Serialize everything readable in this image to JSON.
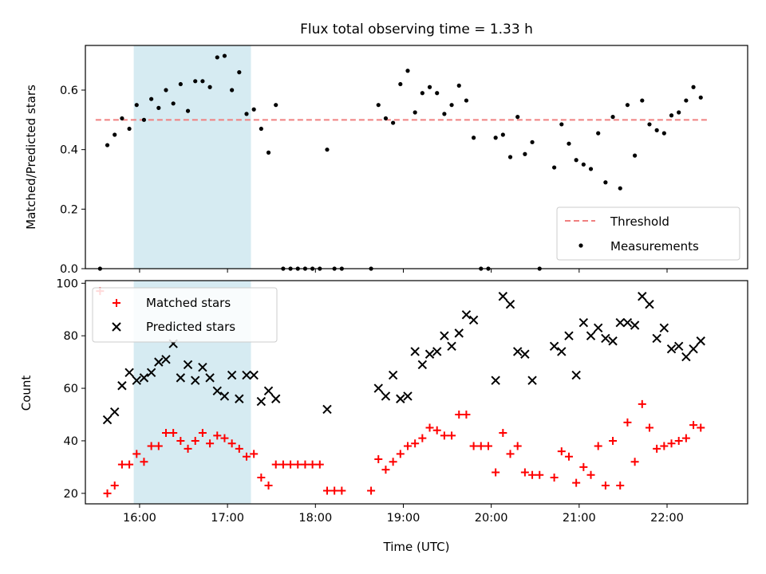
{
  "chart_data": [
    {
      "type": "scatter",
      "title": "Flux total observing time = 1.33 h",
      "xlabel": "",
      "ylabel": "Matched/Predicted stars",
      "xlim": [
        "15:23",
        "22:55"
      ],
      "ylim": [
        0,
        0.75
      ],
      "yticks": [
        0.0,
        0.2,
        0.4,
        0.6
      ],
      "ytick_labels": [
        "0.0",
        "0.2",
        "0.4",
        "0.6"
      ],
      "highlight_span": {
        "start": "15:56",
        "end": "17:16",
        "color": "#add8e6"
      },
      "threshold": {
        "name": "Threshold",
        "value": 0.5,
        "x_start": "15:30",
        "x_end": "22:28",
        "color": "#f08080",
        "style": "dashed"
      },
      "legend": {
        "location": "lower right",
        "entries": [
          "Threshold",
          "Measurements"
        ]
      },
      "series": [
        {
          "name": "Measurements",
          "color": "#000000",
          "marker": "dot",
          "points": [
            [
              "15:33",
              0.0
            ],
            [
              "15:38",
              0.415
            ],
            [
              "15:43",
              0.45
            ],
            [
              "15:48",
              0.505
            ],
            [
              "15:53",
              0.47
            ],
            [
              "15:58",
              0.55
            ],
            [
              "16:03",
              0.5
            ],
            [
              "16:08",
              0.57
            ],
            [
              "16:13",
              0.54
            ],
            [
              "16:18",
              0.6
            ],
            [
              "16:23",
              0.555
            ],
            [
              "16:28",
              0.62
            ],
            [
              "16:33",
              0.53
            ],
            [
              "16:38",
              0.63
            ],
            [
              "16:43",
              0.63
            ],
            [
              "16:48",
              0.61
            ],
            [
              "16:53",
              0.71
            ],
            [
              "16:58",
              0.715
            ],
            [
              "17:03",
              0.6
            ],
            [
              "17:08",
              0.66
            ],
            [
              "17:13",
              0.52
            ],
            [
              "17:18",
              0.535
            ],
            [
              "17:23",
              0.47
            ],
            [
              "17:28",
              0.39
            ],
            [
              "17:33",
              0.55
            ],
            [
              "17:38",
              0.0
            ],
            [
              "17:43",
              0.0
            ],
            [
              "17:48",
              0.0
            ],
            [
              "17:53",
              0.0
            ],
            [
              "17:58",
              0.0
            ],
            [
              "18:03",
              0.0
            ],
            [
              "18:08",
              0.4
            ],
            [
              "18:13",
              0.0
            ],
            [
              "18:18",
              0.0
            ],
            [
              "18:38",
              0.0
            ],
            [
              "18:43",
              0.55
            ],
            [
              "18:48",
              0.505
            ],
            [
              "18:53",
              0.49
            ],
            [
              "18:58",
              0.62
            ],
            [
              "19:03",
              0.665
            ],
            [
              "19:08",
              0.525
            ],
            [
              "19:13",
              0.59
            ],
            [
              "19:18",
              0.61
            ],
            [
              "19:23",
              0.59
            ],
            [
              "19:28",
              0.52
            ],
            [
              "19:33",
              0.55
            ],
            [
              "19:38",
              0.615
            ],
            [
              "19:43",
              0.565
            ],
            [
              "19:48",
              0.44
            ],
            [
              "19:53",
              0.0
            ],
            [
              "19:58",
              0.0
            ],
            [
              "20:03",
              0.44
            ],
            [
              "20:08",
              0.45
            ],
            [
              "20:13",
              0.375
            ],
            [
              "20:18",
              0.51
            ],
            [
              "20:23",
              0.385
            ],
            [
              "20:28",
              0.425
            ],
            [
              "20:33",
              0.0
            ],
            [
              "20:43",
              0.34
            ],
            [
              "20:48",
              0.485
            ],
            [
              "20:53",
              0.42
            ],
            [
              "20:58",
              0.365
            ],
            [
              "21:03",
              0.35
            ],
            [
              "21:08",
              0.335
            ],
            [
              "21:13",
              0.455
            ],
            [
              "21:18",
              0.29
            ],
            [
              "21:23",
              0.51
            ],
            [
              "21:28",
              0.27
            ],
            [
              "21:33",
              0.55
            ],
            [
              "21:38",
              0.38
            ],
            [
              "21:43",
              0.565
            ],
            [
              "21:48",
              0.485
            ],
            [
              "21:53",
              0.465
            ],
            [
              "21:58",
              0.455
            ],
            [
              "22:03",
              0.515
            ],
            [
              "22:08",
              0.525
            ],
            [
              "22:13",
              0.565
            ],
            [
              "22:18",
              0.61
            ],
            [
              "22:23",
              0.575
            ]
          ]
        }
      ]
    },
    {
      "type": "scatter",
      "title": "",
      "xlabel": "Time (UTC)",
      "ylabel": "Count",
      "xlim": [
        "15:23",
        "22:55"
      ],
      "ylim": [
        16,
        101
      ],
      "yticks": [
        20,
        40,
        60,
        80,
        100
      ],
      "ytick_labels": [
        "20",
        "40",
        "60",
        "80",
        "100"
      ],
      "xticks": [
        "16:00",
        "17:00",
        "18:00",
        "19:00",
        "20:00",
        "21:00",
        "22:00"
      ],
      "xtick_labels": [
        "16:00",
        "17:00",
        "18:00",
        "19:00",
        "20:00",
        "21:00",
        "22:00"
      ],
      "highlight_span": {
        "start": "15:56",
        "end": "17:16",
        "color": "#add8e6"
      },
      "legend": {
        "location": "upper left",
        "entries": [
          "Matched stars",
          "Predicted stars"
        ]
      },
      "series": [
        {
          "name": "Matched stars",
          "color": "#ff0000",
          "marker": "plus",
          "points": [
            [
              "15:33",
              97
            ],
            [
              "15:38",
              20
            ],
            [
              "15:43",
              23
            ],
            [
              "15:48",
              31
            ],
            [
              "15:53",
              31
            ],
            [
              "15:58",
              35
            ],
            [
              "16:03",
              32
            ],
            [
              "16:08",
              38
            ],
            [
              "16:13",
              38
            ],
            [
              "16:18",
              43
            ],
            [
              "16:23",
              43
            ],
            [
              "16:28",
              40
            ],
            [
              "16:33",
              37
            ],
            [
              "16:38",
              40
            ],
            [
              "16:43",
              43
            ],
            [
              "16:48",
              39
            ],
            [
              "16:53",
              42
            ],
            [
              "16:58",
              41
            ],
            [
              "17:03",
              39
            ],
            [
              "17:08",
              37
            ],
            [
              "17:13",
              34
            ],
            [
              "17:18",
              35
            ],
            [
              "17:23",
              26
            ],
            [
              "17:28",
              23
            ],
            [
              "17:33",
              31
            ],
            [
              "17:38",
              31
            ],
            [
              "17:43",
              31
            ],
            [
              "17:48",
              31
            ],
            [
              "17:53",
              31
            ],
            [
              "17:58",
              31
            ],
            [
              "18:03",
              31
            ],
            [
              "18:08",
              21
            ],
            [
              "18:13",
              21
            ],
            [
              "18:18",
              21
            ],
            [
              "18:38",
              21
            ],
            [
              "18:43",
              33
            ],
            [
              "18:48",
              29
            ],
            [
              "18:53",
              32
            ],
            [
              "18:58",
              35
            ],
            [
              "19:03",
              38
            ],
            [
              "19:08",
              39
            ],
            [
              "19:13",
              41
            ],
            [
              "19:18",
              45
            ],
            [
              "19:23",
              44
            ],
            [
              "19:28",
              42
            ],
            [
              "19:33",
              42
            ],
            [
              "19:38",
              50
            ],
            [
              "19:43",
              50
            ],
            [
              "19:48",
              38
            ],
            [
              "19:53",
              38
            ],
            [
              "19:58",
              38
            ],
            [
              "20:03",
              28
            ],
            [
              "20:08",
              43
            ],
            [
              "20:13",
              35
            ],
            [
              "20:18",
              38
            ],
            [
              "20:23",
              28
            ],
            [
              "20:28",
              27
            ],
            [
              "20:33",
              27
            ],
            [
              "20:43",
              26
            ],
            [
              "20:48",
              36
            ],
            [
              "20:53",
              34
            ],
            [
              "20:58",
              24
            ],
            [
              "21:03",
              30
            ],
            [
              "21:08",
              27
            ],
            [
              "21:13",
              38
            ],
            [
              "21:18",
              23
            ],
            [
              "21:23",
              40
            ],
            [
              "21:28",
              23
            ],
            [
              "21:33",
              47
            ],
            [
              "21:38",
              32
            ],
            [
              "21:43",
              54
            ],
            [
              "21:48",
              45
            ],
            [
              "21:53",
              37
            ],
            [
              "21:58",
              38
            ],
            [
              "22:03",
              39
            ],
            [
              "22:08",
              40
            ],
            [
              "22:13",
              41
            ],
            [
              "22:18",
              46
            ],
            [
              "22:23",
              45
            ]
          ]
        },
        {
          "name": "Predicted stars",
          "color": "#000000",
          "marker": "x",
          "points": [
            [
              "15:38",
              48
            ],
            [
              "15:43",
              51
            ],
            [
              "15:48",
              61
            ],
            [
              "15:53",
              66
            ],
            [
              "15:58",
              63
            ],
            [
              "16:03",
              64
            ],
            [
              "16:08",
              66
            ],
            [
              "16:13",
              70
            ],
            [
              "16:18",
              71
            ],
            [
              "16:23",
              77
            ],
            [
              "16:28",
              64
            ],
            [
              "16:33",
              69
            ],
            [
              "16:38",
              63
            ],
            [
              "16:43",
              68
            ],
            [
              "16:48",
              64
            ],
            [
              "16:53",
              59
            ],
            [
              "16:58",
              57
            ],
            [
              "17:03",
              65
            ],
            [
              "17:08",
              56
            ],
            [
              "17:13",
              65
            ],
            [
              "17:18",
              65
            ],
            [
              "17:23",
              55
            ],
            [
              "17:28",
              59
            ],
            [
              "17:33",
              56
            ],
            [
              "18:08",
              52
            ],
            [
              "18:43",
              60
            ],
            [
              "18:48",
              57
            ],
            [
              "18:53",
              65
            ],
            [
              "18:58",
              56
            ],
            [
              "19:03",
              57
            ],
            [
              "19:08",
              74
            ],
            [
              "19:13",
              69
            ],
            [
              "19:18",
              73
            ],
            [
              "19:23",
              74
            ],
            [
              "19:28",
              80
            ],
            [
              "19:33",
              76
            ],
            [
              "19:38",
              81
            ],
            [
              "19:43",
              88
            ],
            [
              "19:48",
              86
            ],
            [
              "20:03",
              63
            ],
            [
              "20:08",
              95
            ],
            [
              "20:13",
              92
            ],
            [
              "20:18",
              74
            ],
            [
              "20:23",
              73
            ],
            [
              "20:28",
              63
            ],
            [
              "20:43",
              76
            ],
            [
              "20:48",
              74
            ],
            [
              "20:53",
              80
            ],
            [
              "20:58",
              65
            ],
            [
              "21:03",
              85
            ],
            [
              "21:08",
              80
            ],
            [
              "21:13",
              83
            ],
            [
              "21:18",
              79
            ],
            [
              "21:23",
              78
            ],
            [
              "21:28",
              85
            ],
            [
              "21:33",
              85
            ],
            [
              "21:38",
              84
            ],
            [
              "21:43",
              95
            ],
            [
              "21:48",
              92
            ],
            [
              "21:53",
              79
            ],
            [
              "21:58",
              83
            ],
            [
              "22:03",
              75
            ],
            [
              "22:08",
              76
            ],
            [
              "22:13",
              72
            ],
            [
              "22:18",
              75
            ],
            [
              "22:23",
              78
            ]
          ]
        }
      ]
    }
  ]
}
